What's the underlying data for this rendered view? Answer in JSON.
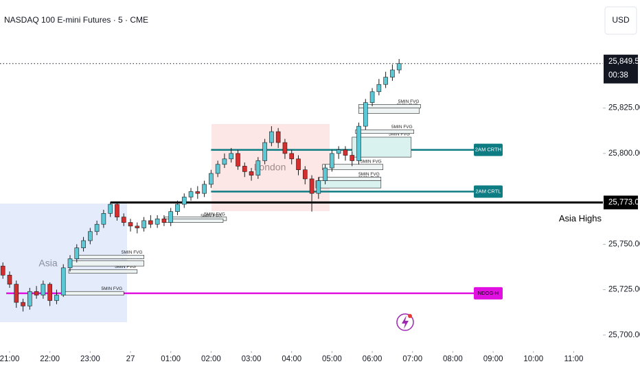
{
  "chart_data": {
    "type": "candlestick",
    "title": "NASDAQ 100 E-mini Futures · 5 · CME",
    "currency": "USD",
    "up_color": "#5bc8d6",
    "down_color": "#d32f2f",
    "x": [
      -10,
      0,
      10,
      20,
      30,
      40,
      50,
      60,
      70,
      80,
      90,
      100,
      110,
      120,
      130,
      140,
      150,
      160,
      170,
      180,
      190,
      200,
      210,
      220,
      230,
      240,
      250,
      260,
      270,
      280,
      290,
      300,
      310,
      320,
      330,
      340,
      350,
      360,
      370,
      380,
      390,
      400,
      410,
      420,
      430,
      440,
      450,
      460,
      470,
      480,
      490,
      500,
      510,
      520,
      530,
      540,
      550,
      560,
      570,
      580
    ],
    "open": [
      25738,
      25733,
      25728,
      25718,
      25716,
      25724,
      25722,
      25728,
      25719,
      25722,
      25737,
      25742,
      25748,
      25752,
      25757,
      25761,
      25767,
      25772,
      25765,
      25762,
      25760,
      25759,
      25763,
      25761,
      25764,
      25762,
      25768,
      25772,
      25776,
      25779,
      25778,
      25783,
      25789,
      25794,
      25797,
      25800,
      25793,
      25790,
      25788,
      25796,
      25806,
      25812,
      25806,
      25800,
      25797,
      25791,
      25786,
      25778,
      25785,
      25792,
      25800,
      25802,
      25799,
      25796,
      25815,
      25828,
      25834,
      25838,
      25842,
      25846
    ],
    "high": [
      25740,
      25735,
      25730,
      25720,
      25726,
      25727,
      25730,
      25729,
      25725,
      25739,
      25744,
      25750,
      25754,
      25759,
      25763,
      25769,
      25773,
      25773,
      25767,
      25764,
      25762,
      25765,
      25766,
      25766,
      25766,
      25770,
      25774,
      25778,
      25781,
      25782,
      25785,
      25791,
      25796,
      25800,
      25803,
      25802,
      25795,
      25792,
      25798,
      25808,
      25815,
      25814,
      25808,
      25802,
      25799,
      25793,
      25788,
      25787,
      25794,
      25802,
      25804,
      25804,
      25801,
      25817,
      25830,
      25836,
      25841,
      25845,
      25849,
      25852
    ],
    "low": [
      25731,
      25726,
      25715,
      25713,
      25714,
      25720,
      25720,
      25716,
      25717,
      25721,
      25735,
      25740,
      25746,
      25750,
      25755,
      25759,
      25765,
      25763,
      25760,
      25757,
      25756,
      25757,
      25759,
      25759,
      25760,
      25760,
      25766,
      25770,
      25774,
      25775,
      25776,
      25781,
      25787,
      25792,
      25795,
      25791,
      25787,
      25785,
      25786,
      25794,
      25804,
      25803,
      25797,
      25794,
      25788,
      25783,
      25768,
      25775,
      25783,
      25790,
      25797,
      25796,
      25793,
      25794,
      25813,
      25826,
      25832,
      25836,
      25840,
      25844
    ],
    "close": [
      25733,
      25728,
      25718,
      25716,
      25724,
      25722,
      25728,
      25719,
      25722,
      25737,
      25742,
      25748,
      25752,
      25757,
      25761,
      25767,
      25772,
      25765,
      25762,
      25760,
      25759,
      25763,
      25761,
      25764,
      25762,
      25768,
      25772,
      25776,
      25779,
      25778,
      25783,
      25789,
      25794,
      25797,
      25800,
      25793,
      25790,
      25788,
      25796,
      25806,
      25812,
      25806,
      25800,
      25797,
      25791,
      25786,
      25778,
      25785,
      25792,
      25800,
      25802,
      25799,
      25796,
      25815,
      25828,
      25834,
      25838,
      25842,
      25846,
      25849.5
    ],
    "xlim": [
      -14.3,
      883.5
    ],
    "xticks": [
      {
        "value": 0,
        "label": "21:00"
      },
      {
        "value": 60,
        "label": "22:00"
      },
      {
        "value": 120,
        "label": "23:00"
      },
      {
        "value": 180,
        "label": "27"
      },
      {
        "value": 240,
        "label": "01:00"
      },
      {
        "value": 300,
        "label": "02:00"
      },
      {
        "value": 360,
        "label": "03:00"
      },
      {
        "value": 420,
        "label": "04:00"
      },
      {
        "value": 480,
        "label": "05:00"
      },
      {
        "value": 540,
        "label": "06:00"
      },
      {
        "value": 600,
        "label": "07:00"
      },
      {
        "value": 660,
        "label": "08:00"
      },
      {
        "value": 720,
        "label": "09:00"
      },
      {
        "value": 780,
        "label": "10:00"
      },
      {
        "value": 840,
        "label": "11:00"
      }
    ],
    "ylim": [
      25692,
      25884.5
    ],
    "yticks": [
      {
        "value": 25700,
        "label": "25,700.00"
      },
      {
        "value": 25725,
        "label": "25,725.00"
      },
      {
        "value": 25750,
        "label": "25,750.00"
      },
      {
        "value": 25800,
        "label": "25,800.00"
      },
      {
        "value": 25825,
        "label": "25,825.00"
      }
    ],
    "last_price": {
      "value": 25849.5,
      "label": "25,849.50",
      "countdown": "00:38"
    },
    "sessions": [
      {
        "label": "Asia"
      },
      {
        "label": "London"
      }
    ],
    "levels": [
      {
        "label": "Asia Highs",
        "value": 25773,
        "value_label": "25,773.00",
        "from": 150,
        "color": "#000000"
      },
      {
        "label": "2AM CRTH",
        "value": 25802,
        "from": 300,
        "color": "#0d7c83"
      },
      {
        "label": "2AM CRTL",
        "value": 25779,
        "from": 300,
        "color": "#0d7c83"
      },
      {
        "label": "NDOG-H",
        "value": 25723,
        "from": -5,
        "color": "#e010e0"
      }
    ],
    "fvgs": [
      {
        "label": "5MIN FVG",
        "low": 25722,
        "high": 25724,
        "start": 83,
        "end": 170
      },
      {
        "label": "5MIN FVG",
        "low": 25734,
        "high": 25736,
        "start": 88,
        "end": 190
      },
      {
        "label": "5MIN FVG",
        "low": 25738,
        "high": 25741,
        "start": 93,
        "end": 200
      },
      {
        "label": "5MIN FVG",
        "low": 25742,
        "high": 25744,
        "start": 100,
        "end": 200
      },
      {
        "label": "5MIN FVG",
        "low": 25763,
        "high": 25765,
        "start": 231,
        "end": 323
      },
      {
        "label": "5MIN FVG",
        "low": 25762,
        "high": 25764,
        "start": 231,
        "end": 318
      },
      {
        "label": "5MIN FVG",
        "low": 25781,
        "high": 25785,
        "start": 456,
        "end": 553
      },
      {
        "label": "5MIN FVG",
        "low": 25785,
        "high": 25787,
        "start": 461,
        "end": 553
      },
      {
        "label": "5MIN FVG",
        "low": 25791,
        "high": 25794,
        "start": 466,
        "end": 556
      },
      {
        "label": "5MIN FVG",
        "low": 25798,
        "high": 25809,
        "start": 510,
        "end": 598
      },
      {
        "label": "5MIN FVG",
        "low": 25811,
        "high": 25813,
        "start": 515,
        "end": 602
      },
      {
        "label": "5MIN FVG",
        "low": 25822,
        "high": 25825,
        "start": 520,
        "end": 610
      },
      {
        "label": "5MIN FVG",
        "low": 25825,
        "high": 25827,
        "start": 520,
        "end": 612
      }
    ]
  }
}
